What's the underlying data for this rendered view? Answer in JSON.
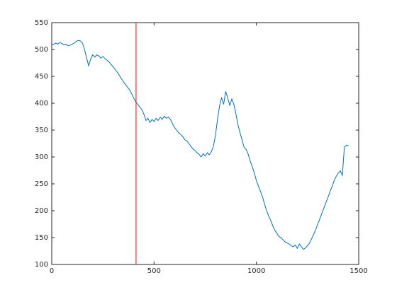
{
  "chart_data": {
    "type": "line",
    "x": [
      0,
      10,
      20,
      30,
      40,
      50,
      60,
      70,
      80,
      90,
      100,
      110,
      120,
      130,
      140,
      150,
      160,
      170,
      180,
      190,
      200,
      210,
      220,
      230,
      240,
      250,
      260,
      270,
      280,
      290,
      300,
      310,
      320,
      330,
      340,
      350,
      360,
      370,
      380,
      390,
      400,
      410,
      420,
      430,
      440,
      450,
      460,
      470,
      480,
      490,
      500,
      510,
      520,
      530,
      540,
      550,
      560,
      570,
      580,
      590,
      600,
      610,
      620,
      630,
      640,
      650,
      660,
      670,
      680,
      690,
      700,
      710,
      720,
      730,
      740,
      750,
      760,
      770,
      780,
      790,
      800,
      810,
      820,
      830,
      840,
      850,
      860,
      870,
      880,
      890,
      900,
      910,
      920,
      930,
      940,
      950,
      960,
      970,
      980,
      990,
      1000,
      1010,
      1020,
      1030,
      1040,
      1050,
      1060,
      1070,
      1080,
      1090,
      1100,
      1110,
      1120,
      1130,
      1140,
      1150,
      1160,
      1170,
      1180,
      1190,
      1200,
      1210,
      1220,
      1230,
      1240,
      1250,
      1260,
      1270,
      1280,
      1290,
      1300,
      1310,
      1320,
      1330,
      1340,
      1350,
      1360,
      1370,
      1380,
      1390,
      1400,
      1410,
      1420,
      1430,
      1440,
      1450
    ],
    "series": [
      {
        "color": "#0072bd",
        "values": [
          508,
          510,
          512,
          510,
          513,
          511,
          509,
          510,
          507,
          508,
          510,
          512,
          515,
          517,
          516,
          512,
          500,
          485,
          470,
          482,
          490,
          486,
          490,
          488,
          484,
          487,
          483,
          480,
          477,
          472,
          468,
          463,
          458,
          452,
          446,
          440,
          435,
          430,
          425,
          418,
          410,
          403,
          398,
          393,
          388,
          380,
          368,
          372,
          364,
          370,
          366,
          372,
          368,
          374,
          370,
          376,
          372,
          374,
          370,
          362,
          355,
          350,
          345,
          342,
          338,
          332,
          330,
          325,
          320,
          315,
          312,
          308,
          305,
          300,
          306,
          302,
          308,
          304,
          310,
          320,
          340,
          370,
          395,
          410,
          398,
          422,
          410,
          396,
          408,
          398,
          380,
          360,
          345,
          332,
          318,
          314,
          305,
          292,
          282,
          270,
          256,
          246,
          236,
          226,
          212,
          200,
          190,
          182,
          172,
          164,
          158,
          152,
          150,
          146,
          142,
          140,
          138,
          135,
          133,
          136,
          130,
          138,
          133,
          128,
          131,
          135,
          140,
          148,
          156,
          165,
          175,
          185,
          195,
          205,
          215,
          225,
          236,
          245,
          256,
          264,
          270,
          274,
          266,
          318,
          322,
          321
        ]
      }
    ],
    "vline": {
      "x": 412,
      "color": "#ff0000"
    },
    "xlim": [
      0,
      1500
    ],
    "xticks": [
      0,
      500,
      1000,
      1500
    ],
    "ylim": [
      100,
      550
    ],
    "yticks": [
      100,
      150,
      200,
      250,
      300,
      350,
      400,
      450,
      500,
      550
    ],
    "grid": false
  }
}
